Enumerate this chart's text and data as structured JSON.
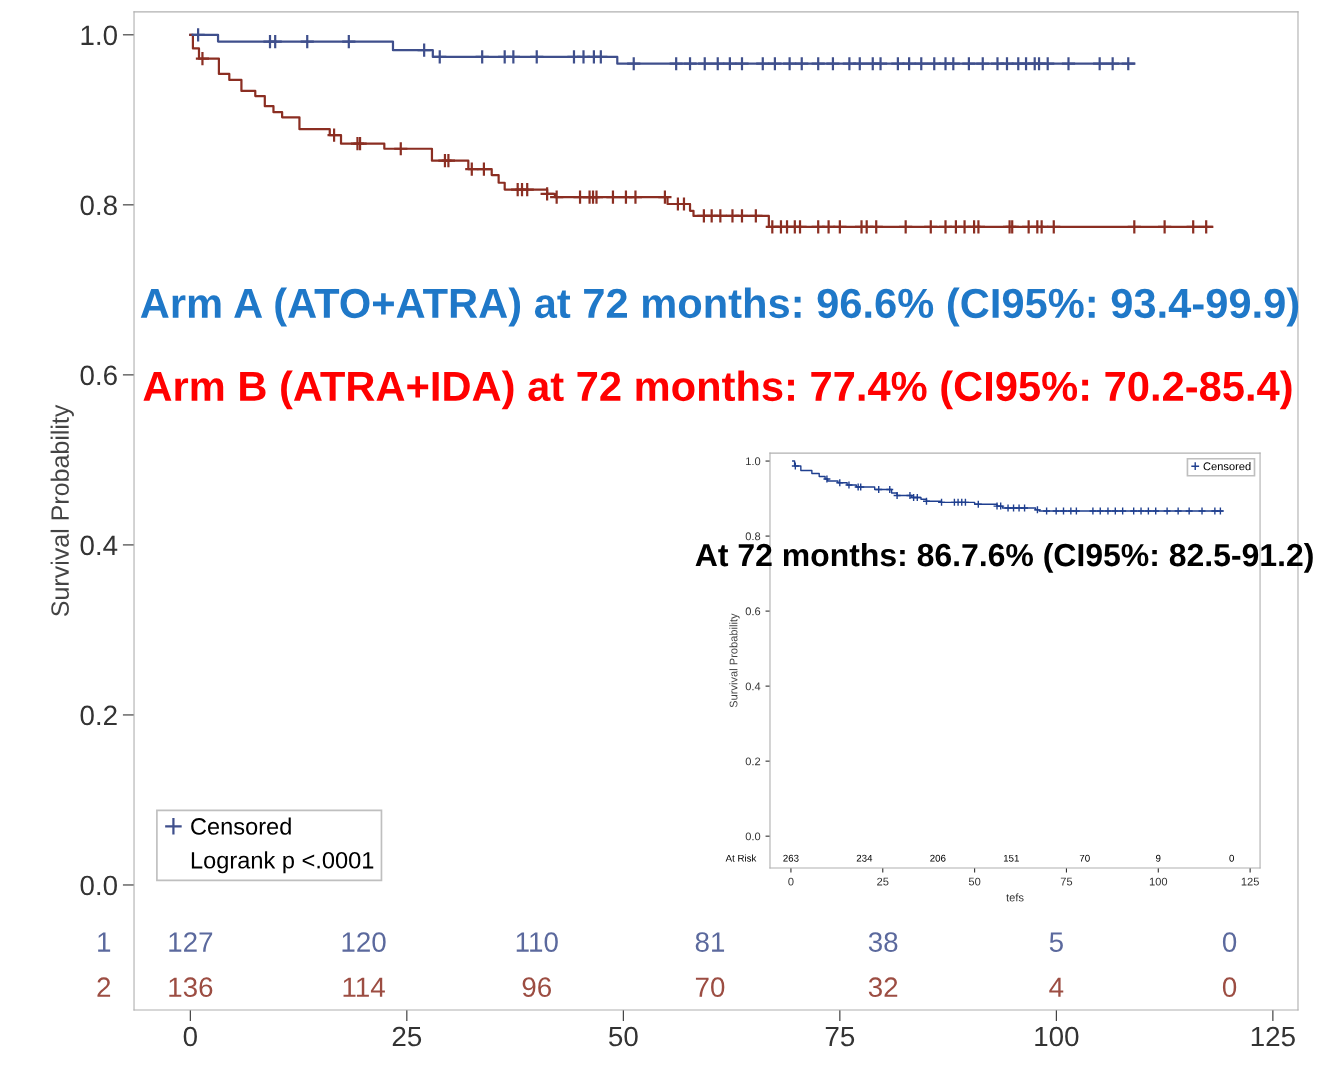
{
  "chart_data": [
    {
      "type": "step",
      "ylabel": "Survival Probability",
      "xlim": [
        -6.5,
        127.9
      ],
      "ylim": [
        -0.147,
        1.027
      ],
      "xticks": [
        0,
        25,
        50,
        75,
        100,
        125
      ],
      "yticks": [
        {
          "value": 0,
          "label": "0.0"
        },
        {
          "value": 0.2,
          "label": "0.2"
        },
        {
          "value": 0.4,
          "label": "0.4"
        },
        {
          "value": 0.6,
          "label": "0.6"
        },
        {
          "value": 0.8,
          "label": "0.8"
        },
        {
          "value": 1,
          "label": "1.0"
        }
      ],
      "grid": false,
      "legend": "bottom left",
      "line_style": "solid",
      "series": [
        {
          "color": "#3f4f8c",
          "x": [
            0,
            3.2,
            23.4,
            28,
            49.3,
            109
          ],
          "values": [
            1,
            0.992,
            0.982,
            0.974,
            0.966,
            0.966
          ]
        },
        {
          "color": "#8b2e22",
          "x": [
            0,
            0.3,
            1.0,
            3.3,
            4.5,
            5.9,
            7.5,
            8.6,
            9.6,
            10.6,
            12.6,
            16.1,
            17.4,
            22.4,
            27.9,
            32.1,
            34.8,
            35.6,
            36.3,
            41.2,
            42.1,
            55.1,
            57.7,
            58.1,
            66.8,
            118
          ],
          "values": [
            1,
            0.984,
            0.972,
            0.954,
            0.947,
            0.934,
            0.928,
            0.916,
            0.909,
            0.903,
            0.889,
            0.882,
            0.872,
            0.866,
            0.852,
            0.842,
            0.835,
            0.826,
            0.818,
            0.813,
            0.809,
            0.801,
            0.793,
            0.787,
            0.774,
            0.774
          ]
        },
        {
          "type": "scatter",
          "name": "Censored",
          "marker": "cross",
          "color": "#3f4f8c",
          "x": [
            0.9,
            9.2,
            9.8,
            13.5,
            18.3,
            27.0,
            28.8,
            33.7,
            36.3,
            37.3,
            40.0,
            44.3,
            45.4,
            46.6,
            47.4,
            51.2,
            56.1,
            57.7,
            59.4,
            60.9,
            62.3,
            63.7,
            66.1,
            67.5,
            69.2,
            70.6,
            72.5,
            74.2,
            76.1,
            77.3,
            78.8,
            79.7,
            81.7,
            83.0,
            84.4,
            85.9,
            87.2,
            88.1,
            89.9,
            91.5,
            93.2,
            94.3,
            95.6,
            96.5,
            97.5,
            98.0,
            99.0,
            101.4,
            105.0,
            106.5,
            108.3
          ],
          "values": [
            1,
            0.992,
            0.992,
            0.992,
            0.992,
            0.982,
            0.974,
            0.974,
            0.974,
            0.974,
            0.974,
            0.974,
            0.974,
            0.974,
            0.974,
            0.966,
            0.966,
            0.966,
            0.966,
            0.966,
            0.966,
            0.966,
            0.966,
            0.966,
            0.966,
            0.966,
            0.966,
            0.966,
            0.966,
            0.966,
            0.966,
            0.966,
            0.966,
            0.966,
            0.966,
            0.966,
            0.966,
            0.966,
            0.966,
            0.966,
            0.966,
            0.966,
            0.966,
            0.966,
            0.966,
            0.966,
            0.966,
            0.966,
            0.966,
            0.966,
            0.966
          ]
        },
        {
          "type": "scatter",
          "marker": "cross",
          "color": "#8b2e22",
          "x": [
            1.4,
            16.6,
            19.3,
            19.6,
            24.3,
            29.4,
            29.8,
            32.5,
            33.9,
            37.8,
            38.3,
            38.9,
            41.2,
            42.3,
            45.0,
            46.1,
            46.5,
            46.9,
            48.8,
            50.3,
            51.4,
            54.8,
            56.3,
            57.0,
            59.3,
            60.2,
            61.2,
            62.6,
            63.7,
            65.3,
            67.2,
            68.2,
            68.9,
            69.8,
            70.4,
            72.5,
            73.7,
            75.0,
            77.5,
            78.1,
            79.2,
            82.6,
            85.5,
            87.2,
            88.4,
            89.4,
            90.5,
            91.0,
            94.6,
            94.9,
            96.8,
            97.8,
            98.3,
            99.7,
            109.0,
            112.5,
            115.8,
            117.3
          ],
          "values": [
            0.972,
            0.882,
            0.872,
            0.872,
            0.866,
            0.852,
            0.852,
            0.842,
            0.842,
            0.818,
            0.818,
            0.818,
            0.813,
            0.809,
            0.809,
            0.809,
            0.809,
            0.809,
            0.809,
            0.809,
            0.809,
            0.809,
            0.801,
            0.801,
            0.787,
            0.787,
            0.787,
            0.787,
            0.787,
            0.787,
            0.774,
            0.774,
            0.774,
            0.774,
            0.774,
            0.774,
            0.774,
            0.774,
            0.774,
            0.774,
            0.774,
            0.774,
            0.774,
            0.774,
            0.774,
            0.774,
            0.774,
            0.774,
            0.774,
            0.774,
            0.774,
            0.774,
            0.774,
            0.774,
            0.774,
            0.774,
            0.774,
            0.774
          ]
        }
      ],
      "annotations": [
        "Arm A (ATO+ATRA) at 72 months: 96.6% (CI95%: 93.4-99.9)",
        "Arm B (ATRA+IDA) at 72 months: 77.4% (CI95%: 70.2-85.4)",
        "Logrank p <.0001",
        "1",
        "127",
        "120",
        "110",
        "81",
        "38",
        "5",
        "0",
        "2",
        "136",
        "114",
        "96",
        "70",
        "32",
        "4",
        "0"
      ]
    },
    {
      "type": "step",
      "ylabel": "Survival Probability",
      "xlabel": "tefs",
      "xlim": [
        -5.7,
        127.7
      ],
      "ylim": [
        -0.085,
        1.021
      ],
      "xticks": [
        0,
        25,
        50,
        75,
        100,
        125
      ],
      "yticks": [
        {
          "value": 0,
          "label": "0.0"
        },
        {
          "value": 0.2,
          "label": "0.2"
        },
        {
          "value": 0.4,
          "label": "0.4"
        },
        {
          "value": 0.6,
          "label": "0.6"
        },
        {
          "value": 0.8,
          "label": "0.8"
        },
        {
          "value": 1,
          "label": "1.0"
        }
      ],
      "grid": false,
      "legend": "top right",
      "line_style": "solid",
      "series": [
        {
          "color": "#1f3f8f",
          "x": [
            0.5,
            1.0,
            2.7,
            5.7,
            7.7,
            9.3,
            10.0,
            12.8,
            15.3,
            17.8,
            22.8,
            27.4,
            28.9,
            32.9,
            35.4,
            36.9,
            41.0,
            50.0,
            56.1,
            57.6,
            66.6,
            67.6,
            117.4
          ],
          "values": [
            1,
            0.987,
            0.975,
            0.967,
            0.959,
            0.952,
            0.947,
            0.942,
            0.936,
            0.931,
            0.924,
            0.915,
            0.908,
            0.903,
            0.898,
            0.893,
            0.89,
            0.885,
            0.88,
            0.875,
            0.87,
            0.867,
            0.867
          ]
        },
        {
          "type": "scatter",
          "name": "Censored",
          "marker": "cross",
          "color": "#1f3f8f",
          "x": [
            1.2,
            9.8,
            13.3,
            15.8,
            18.3,
            19.0,
            23.9,
            26.9,
            28.9,
            32.4,
            33.4,
            34.4,
            36.9,
            41.0,
            44.5,
            45.5,
            46.5,
            47.5,
            51.0,
            56.1,
            57.1,
            59.1,
            60.6,
            62.1,
            63.6,
            67.1,
            69.6,
            72.2,
            74.2,
            76.2,
            77.7,
            82.2,
            84.2,
            86.3,
            88.3,
            90.3,
            93.3,
            95.3,
            97.3,
            99.3,
            102.4,
            105.4,
            108.4,
            111.9,
            115.4,
            116.9
          ],
          "values": [
            0.987,
            0.952,
            0.942,
            0.936,
            0.931,
            0.931,
            0.924,
            0.924,
            0.908,
            0.908,
            0.903,
            0.903,
            0.893,
            0.89,
            0.89,
            0.89,
            0.89,
            0.89,
            0.885,
            0.88,
            0.88,
            0.875,
            0.875,
            0.875,
            0.875,
            0.87,
            0.867,
            0.867,
            0.867,
            0.867,
            0.867,
            0.867,
            0.867,
            0.867,
            0.867,
            0.867,
            0.867,
            0.867,
            0.867,
            0.867,
            0.867,
            0.867,
            0.867,
            0.867,
            0.867,
            0.867
          ]
        }
      ],
      "annotations": [
        "At 72 months: 86.7.6% (CI95%: 82.5-91.2)",
        "At Risk",
        "263",
        "234",
        "206",
        "151",
        "70",
        "9",
        "0"
      ]
    }
  ]
}
